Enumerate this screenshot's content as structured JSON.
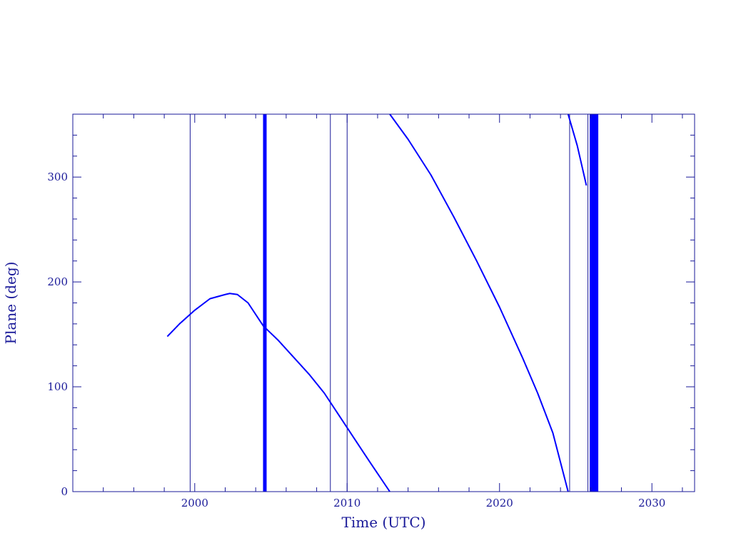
{
  "chart_data": {
    "type": "line",
    "title": "",
    "xlabel": "Time (UTC)",
    "ylabel": "Plane (deg)",
    "xlim": [
      1992.0,
      2032.8
    ],
    "ylim": [
      0,
      360
    ],
    "x_ticks": [
      2000,
      2010,
      2020,
      2030
    ],
    "y_ticks": [
      0,
      100,
      200,
      300
    ],
    "x_tick_labels": [
      "2000",
      "2010",
      "2020",
      "2030"
    ],
    "y_tick_labels": [
      "0",
      "100",
      "200",
      "300"
    ],
    "x_minor_step": 2,
    "y_minor_step": 20,
    "grid": false,
    "colors": {
      "frame": "#1a1a99",
      "text": "#1a1a99",
      "data": "#0000ff"
    },
    "series": [
      {
        "points": [
          [
            1998.2,
            148
          ],
          [
            1999.0,
            160
          ],
          [
            2000.0,
            173
          ],
          [
            2001.0,
            184
          ],
          [
            2002.0,
            188
          ],
          [
            2002.3,
            189
          ],
          [
            2002.8,
            188
          ],
          [
            2003.5,
            180
          ],
          [
            2004.5,
            158
          ],
          [
            2005.5,
            144
          ],
          [
            2006.5,
            128
          ],
          [
            2007.5,
            112
          ],
          [
            2008.5,
            94
          ],
          [
            2009.5,
            72
          ],
          [
            2010.5,
            50
          ],
          [
            2011.5,
            28
          ],
          [
            2012.8,
            0
          ]
        ]
      },
      {
        "points": [
          [
            2012.8,
            360
          ],
          [
            2014.0,
            336
          ],
          [
            2015.5,
            302
          ],
          [
            2017.0,
            262
          ],
          [
            2018.5,
            220
          ],
          [
            2020.0,
            176
          ],
          [
            2021.5,
            128
          ],
          [
            2022.5,
            94
          ],
          [
            2023.5,
            56
          ],
          [
            2024.5,
            0
          ]
        ]
      },
      {
        "points": [
          [
            2024.5,
            360
          ],
          [
            2025.1,
            330
          ],
          [
            2025.7,
            292
          ]
        ]
      }
    ],
    "vertical_lines": [
      {
        "x": 1999.7,
        "weight": "thin"
      },
      {
        "x": 2004.6,
        "weight": "thick"
      },
      {
        "x": 2008.9,
        "weight": "thin"
      },
      {
        "x": 2010.0,
        "weight": "thin"
      },
      {
        "x": 2024.6,
        "weight": "thin"
      },
      {
        "x": 2025.8,
        "weight": "thin"
      },
      {
        "x": 2026.2,
        "weight": "band"
      }
    ]
  }
}
